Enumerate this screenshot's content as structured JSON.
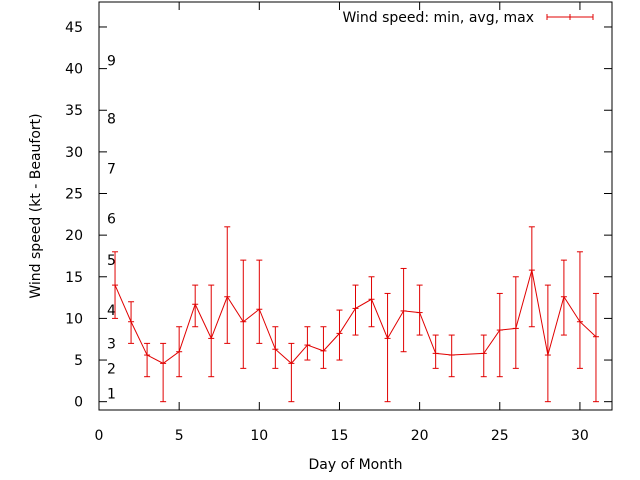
{
  "chart_data": {
    "type": "line",
    "title": "",
    "xlabel": "Day of Month",
    "ylabel": "Wind speed (kt - Beaufort)",
    "xlim": [
      0,
      32
    ],
    "ylim": [
      -1,
      48
    ],
    "x_ticks": [
      0,
      5,
      10,
      15,
      20,
      25,
      30
    ],
    "y_ticks": [
      0,
      5,
      10,
      15,
      20,
      25,
      30,
      35,
      40,
      45
    ],
    "grid": false,
    "legend_position": "top-right",
    "beaufort_labels": [
      {
        "label": "1",
        "y": 1
      },
      {
        "label": "2",
        "y": 4
      },
      {
        "label": "3",
        "y": 7
      },
      {
        "label": "4",
        "y": 11
      },
      {
        "label": "5",
        "y": 17
      },
      {
        "label": "6",
        "y": 22
      },
      {
        "label": "7",
        "y": 28
      },
      {
        "label": "8",
        "y": 34
      },
      {
        "label": "9",
        "y": 41
      }
    ],
    "series": [
      {
        "name": "Wind speed: min, avg, max",
        "color": "#e00000",
        "points": [
          {
            "x": 1,
            "avg": 14,
            "min": 10,
            "max": 18
          },
          {
            "x": 2,
            "avg": 9.6,
            "min": 7,
            "max": 12
          },
          {
            "x": 3,
            "avg": 5.6,
            "min": 3,
            "max": 7
          },
          {
            "x": 4,
            "avg": 4.6,
            "min": 0,
            "max": 7
          },
          {
            "x": 5,
            "avg": 6,
            "min": 3,
            "max": 9
          },
          {
            "x": 6,
            "avg": 11.7,
            "min": 9,
            "max": 14
          },
          {
            "x": 7,
            "avg": 7.6,
            "min": 3,
            "max": 14
          },
          {
            "x": 8,
            "avg": 12.6,
            "min": 7,
            "max": 21
          },
          {
            "x": 9,
            "avg": 9.6,
            "min": 4,
            "max": 17
          },
          {
            "x": 10,
            "avg": 11.1,
            "min": 7,
            "max": 17
          },
          {
            "x": 11,
            "avg": 6.3,
            "min": 4,
            "max": 9
          },
          {
            "x": 12,
            "avg": 4.6,
            "min": 0,
            "max": 7
          },
          {
            "x": 13,
            "avg": 6.8,
            "min": 5,
            "max": 9
          },
          {
            "x": 14,
            "avg": 6.1,
            "min": 4,
            "max": 9
          },
          {
            "x": 15,
            "avg": 8.2,
            "min": 5,
            "max": 11
          },
          {
            "x": 16,
            "avg": 11.2,
            "min": 8,
            "max": 14
          },
          {
            "x": 17,
            "avg": 12.3,
            "min": 9,
            "max": 15
          },
          {
            "x": 18,
            "avg": 7.6,
            "min": 0,
            "max": 13
          },
          {
            "x": 19,
            "avg": 10.9,
            "min": 6,
            "max": 16
          },
          {
            "x": 20,
            "avg": 10.7,
            "min": 8,
            "max": 14
          },
          {
            "x": 21,
            "avg": 5.8,
            "min": 4,
            "max": 8
          },
          {
            "x": 22,
            "avg": 5.6,
            "min": 3,
            "max": 8
          },
          {
            "x": 24,
            "avg": 5.8,
            "min": 3,
            "max": 8
          },
          {
            "x": 25,
            "avg": 8.6,
            "min": 3,
            "max": 13
          },
          {
            "x": 26,
            "avg": 8.8,
            "min": 4,
            "max": 15
          },
          {
            "x": 27,
            "avg": 15.8,
            "min": 9,
            "max": 21
          },
          {
            "x": 28,
            "avg": 5.6,
            "min": 0,
            "max": 14
          },
          {
            "x": 29,
            "avg": 12.6,
            "min": 8,
            "max": 17
          },
          {
            "x": 30,
            "avg": 9.6,
            "min": 4,
            "max": 18
          },
          {
            "x": 31,
            "avg": 7.8,
            "min": 0,
            "max": 13
          }
        ]
      }
    ]
  }
}
